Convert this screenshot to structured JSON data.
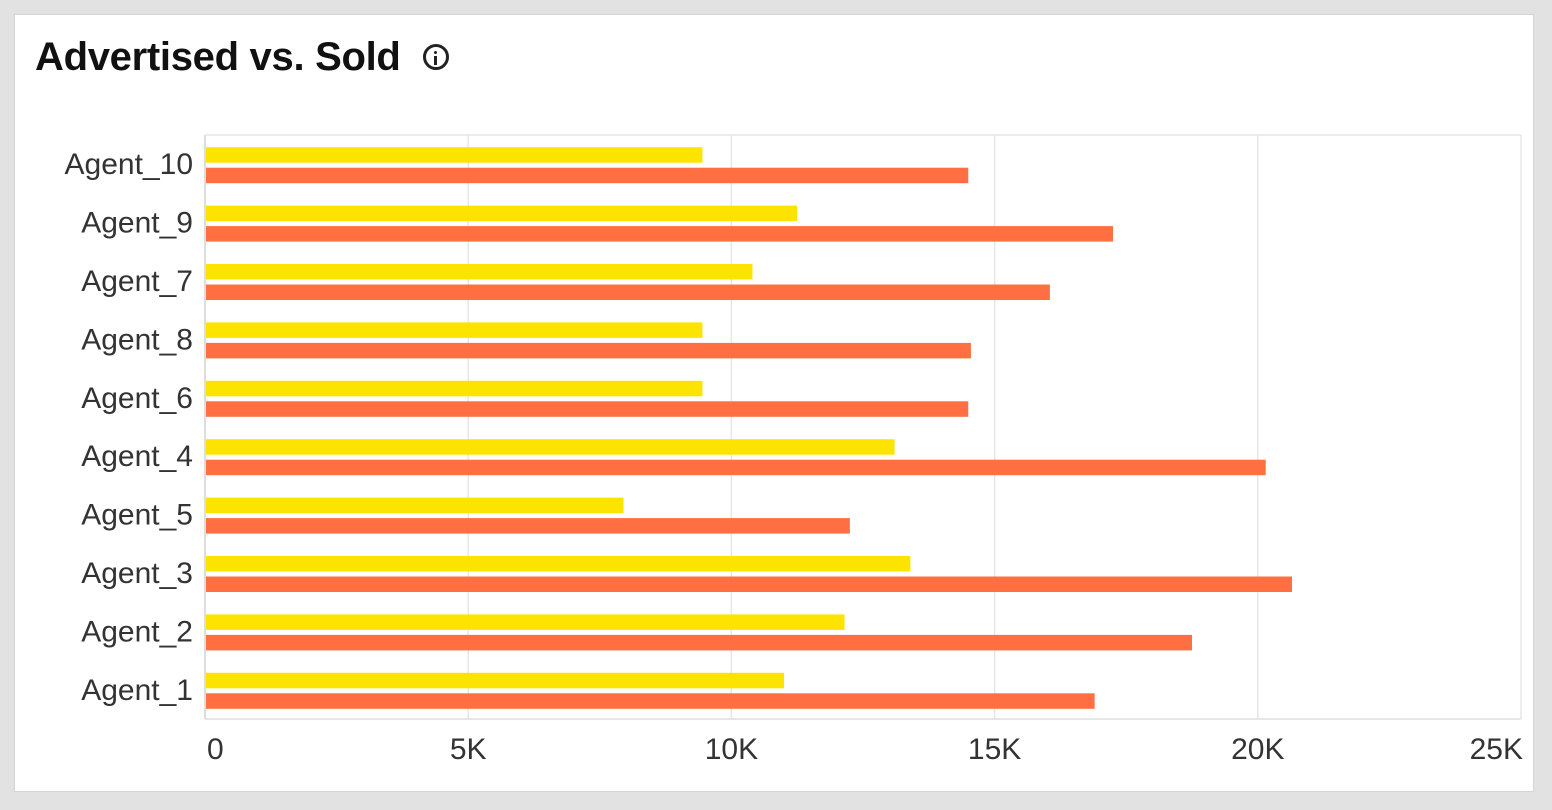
{
  "title": "Advertised vs. Sold",
  "colors": {
    "advertised": "#fde400",
    "sold": "#ff6f41",
    "grid": "#e6e6e6",
    "axis": "#dddddd",
    "text": "#333333"
  },
  "chart_data": {
    "type": "bar",
    "orientation": "horizontal",
    "categories": [
      "Agent_10",
      "Agent_9",
      "Agent_7",
      "Agent_8",
      "Agent_6",
      "Agent_4",
      "Agent_5",
      "Agent_3",
      "Agent_2",
      "Agent_1"
    ],
    "series": [
      {
        "values": [
          9450,
          11250,
          10400,
          9450,
          9450,
          13100,
          7950,
          13400,
          12150,
          11000
        ],
        "color": "#fde400"
      },
      {
        "values": [
          14500,
          17250,
          16050,
          14550,
          14500,
          20150,
          12250,
          20650,
          18750,
          16900
        ],
        "color": "#ff6f41"
      }
    ],
    "xlim": [
      0,
      25000
    ],
    "xticks": [
      0,
      5000,
      10000,
      15000,
      20000,
      25000
    ],
    "xtick_labels": [
      "0",
      "5K",
      "10K",
      "15K",
      "20K",
      "25K"
    ],
    "grid": true,
    "legend": "none"
  }
}
